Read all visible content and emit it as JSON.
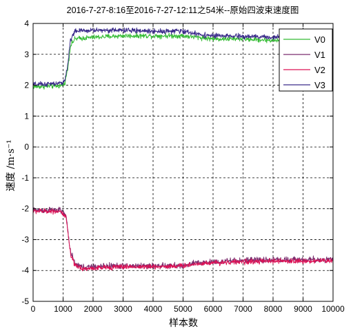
{
  "chart_data": {
    "type": "line",
    "title": "2016-7-27-8:16至2016-7-27-12:11之54米--原始四波束速度图",
    "xlabel": "样本数",
    "ylabel": "速度 /m·s⁻¹",
    "xlim": [
      0,
      10000
    ],
    "ylim": [
      -5,
      4
    ],
    "xticks": [
      0,
      1000,
      2000,
      3000,
      4000,
      5000,
      6000,
      7000,
      8000,
      9000,
      10000
    ],
    "yticks": [
      -5,
      -4,
      -3,
      -2,
      -1,
      0,
      1,
      2,
      3,
      4
    ],
    "grid": true,
    "legend": "top-right",
    "series": [
      {
        "name": "V0",
        "color": "#33bb33",
        "noise": 0.05,
        "points": [
          [
            0,
            1.95
          ],
          [
            900,
            1.98
          ],
          [
            1050,
            2.05
          ],
          [
            1150,
            2.5
          ],
          [
            1250,
            3.3
          ],
          [
            1400,
            3.5
          ],
          [
            2000,
            3.55
          ],
          [
            3000,
            3.6
          ],
          [
            4000,
            3.6
          ],
          [
            5000,
            3.6
          ],
          [
            5500,
            3.55
          ],
          [
            6000,
            3.5
          ],
          [
            7000,
            3.5
          ],
          [
            8000,
            3.45
          ],
          [
            9000,
            3.45
          ],
          [
            10000,
            3.4
          ]
        ]
      },
      {
        "name": "V1",
        "color": "#7a2c6e",
        "noise": 0.06,
        "points": [
          [
            0,
            -2.05
          ],
          [
            900,
            -2.05
          ],
          [
            1100,
            -2.25
          ],
          [
            1250,
            -3.4
          ],
          [
            1400,
            -3.8
          ],
          [
            1700,
            -3.9
          ],
          [
            2500,
            -3.85
          ],
          [
            3000,
            -3.85
          ],
          [
            4000,
            -3.85
          ],
          [
            5000,
            -3.85
          ],
          [
            5500,
            -3.75
          ],
          [
            6000,
            -3.72
          ],
          [
            7000,
            -3.68
          ],
          [
            8000,
            -3.65
          ],
          [
            9000,
            -3.65
          ],
          [
            10000,
            -3.65
          ]
        ]
      },
      {
        "name": "V2",
        "color": "#dd1155",
        "noise": 0.05,
        "points": [
          [
            0,
            -2.08
          ],
          [
            900,
            -2.08
          ],
          [
            1100,
            -2.3
          ],
          [
            1250,
            -3.5
          ],
          [
            1400,
            -3.85
          ],
          [
            1700,
            -3.95
          ],
          [
            2500,
            -3.9
          ],
          [
            3000,
            -3.88
          ],
          [
            4000,
            -3.88
          ],
          [
            5000,
            -3.85
          ],
          [
            5500,
            -3.78
          ],
          [
            6000,
            -3.75
          ],
          [
            7000,
            -3.72
          ],
          [
            8000,
            -3.7
          ],
          [
            9000,
            -3.7
          ],
          [
            10000,
            -3.68
          ]
        ]
      },
      {
        "name": "V3",
        "color": "#3a2a8a",
        "noise": 0.05,
        "points": [
          [
            0,
            2.02
          ],
          [
            900,
            2.05
          ],
          [
            1050,
            2.15
          ],
          [
            1150,
            2.6
          ],
          [
            1250,
            3.5
          ],
          [
            1400,
            3.75
          ],
          [
            2000,
            3.78
          ],
          [
            3000,
            3.78
          ],
          [
            4000,
            3.75
          ],
          [
            5000,
            3.75
          ],
          [
            5500,
            3.65
          ],
          [
            6000,
            3.6
          ],
          [
            7000,
            3.58
          ],
          [
            8000,
            3.55
          ],
          [
            9000,
            3.55
          ],
          [
            10000,
            3.5
          ]
        ]
      }
    ]
  }
}
